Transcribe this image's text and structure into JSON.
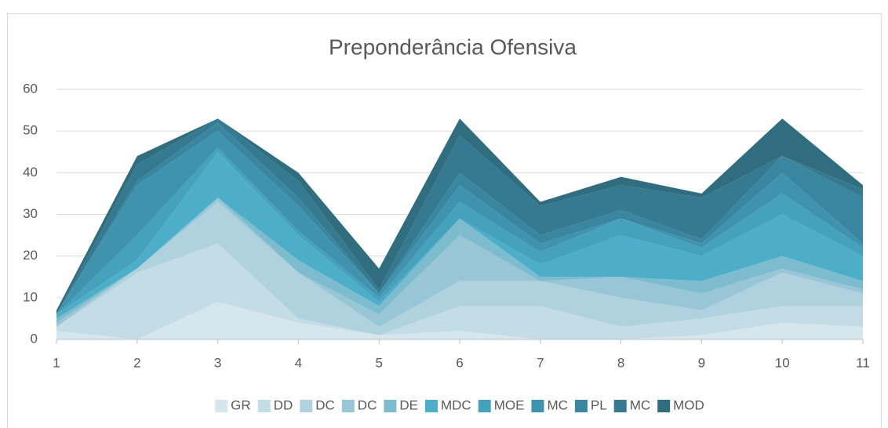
{
  "chart_data": {
    "type": "stacked_area",
    "title": "Preponderância Ofensiva",
    "x": [
      1,
      2,
      3,
      4,
      5,
      6,
      7,
      8,
      9,
      10,
      11
    ],
    "xlim": [
      1,
      11
    ],
    "xticks": [
      1,
      2,
      3,
      4,
      5,
      6,
      7,
      8,
      9,
      10,
      11
    ],
    "ylim": [
      0,
      60
    ],
    "yticks": [
      0,
      10,
      20,
      30,
      40,
      50,
      60
    ],
    "grid": true,
    "legend": "bottom",
    "series": [
      {
        "name": "GR",
        "color": "#d5e6ed",
        "values": [
          2,
          0,
          9,
          4,
          1,
          2,
          0,
          0,
          1,
          4,
          3
        ]
      },
      {
        "name": "DD",
        "color": "#c3dce6",
        "values": [
          1,
          16,
          14,
          1,
          0,
          6,
          8,
          3,
          4,
          4,
          5
        ]
      },
      {
        "name": "DC",
        "color": "#b0d2df",
        "values": [
          0,
          1,
          10,
          11,
          2,
          6,
          6,
          7,
          2,
          8,
          3
        ]
      },
      {
        "name": "DC",
        "color": "#98c6d6",
        "values": [
          1,
          0,
          1,
          0,
          3,
          11,
          0,
          5,
          4,
          1,
          1
        ]
      },
      {
        "name": "DE",
        "color": "#7dbccf",
        "values": [
          1,
          0,
          0,
          3,
          2,
          4,
          1,
          0,
          3,
          3,
          2
        ]
      },
      {
        "name": "MDC",
        "color": "#4caec8",
        "values": [
          1,
          2,
          11,
          6,
          1,
          0,
          3,
          10,
          6,
          10,
          6
        ]
      },
      {
        "name": "MOE",
        "color": "#45a1bc",
        "values": [
          0,
          6,
          1,
          1,
          1,
          4,
          3,
          4,
          2,
          5,
          2
        ]
      },
      {
        "name": "MC",
        "color": "#3f93ae",
        "values": [
          0,
          12,
          4,
          6,
          1,
          4,
          2,
          0,
          1,
          5,
          1
        ]
      },
      {
        "name": "PL",
        "color": "#3a86a0",
        "values": [
          0,
          1,
          2,
          2,
          0,
          3,
          2,
          2,
          1,
          4,
          11
        ]
      },
      {
        "name": "MC",
        "color": "#357a90",
        "values": [
          0,
          4,
          1,
          4,
          1,
          9,
          7,
          6,
          10,
          0,
          2
        ]
      },
      {
        "name": "MOD",
        "color": "#2f6d7f",
        "values": [
          1,
          2,
          0,
          2,
          5,
          4,
          1,
          2,
          1,
          9,
          1
        ]
      }
    ]
  }
}
